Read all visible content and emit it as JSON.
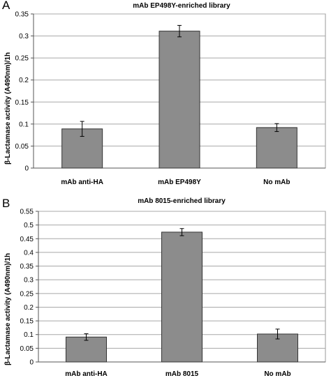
{
  "chart_data": [
    {
      "panel": "A",
      "type": "bar",
      "title": "mAb EP498Y-enriched library",
      "ylabel": "β-Lactamase activity (A490nm)/1h",
      "categories": [
        "mAb anti-HA",
        "mAb EP498Y",
        "No mAb"
      ],
      "values": [
        0.089,
        0.311,
        0.092
      ],
      "errors": [
        0.017,
        0.013,
        0.009
      ],
      "ylim": [
        0,
        0.35
      ],
      "yticks": [
        "0",
        "0.05",
        "0.1",
        "0.15",
        "0.2",
        "0.25",
        "0.3",
        "0.35"
      ],
      "grid": true,
      "bar_color": "#8c8c8c"
    },
    {
      "panel": "B",
      "type": "bar",
      "title": "mAb 8015-enriched  library",
      "ylabel": "β-Lactamase activity (A490nm)/1h",
      "categories": [
        "mAb anti-HA",
        "mAb 8015",
        "No mAb"
      ],
      "values": [
        0.091,
        0.474,
        0.102
      ],
      "errors": [
        0.012,
        0.013,
        0.018
      ],
      "ylim": [
        0,
        0.55
      ],
      "yticks": [
        "0",
        "0.05",
        "0.1",
        "0.15",
        "0.2",
        "0.25",
        "0.3",
        "0.35",
        "0.4",
        "0.45",
        "0.5",
        "0.55"
      ],
      "grid": true,
      "bar_color": "#8c8c8c"
    }
  ]
}
